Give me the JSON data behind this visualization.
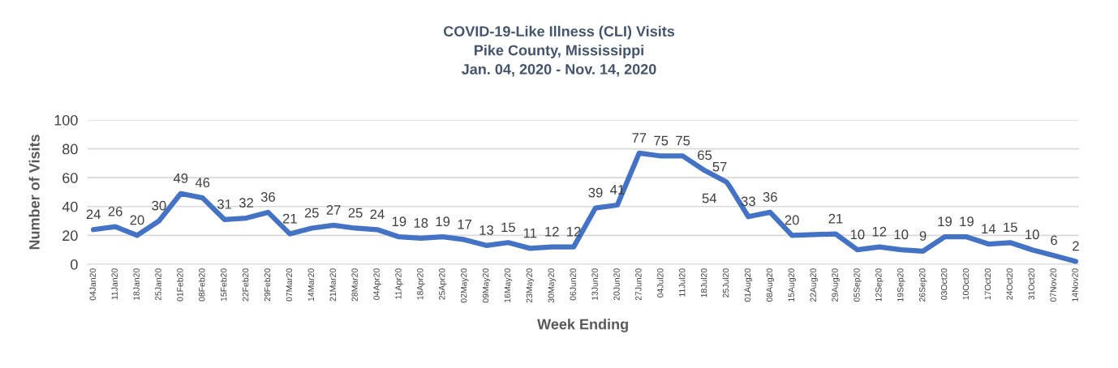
{
  "chart_data": {
    "type": "line",
    "title": "COVID-19-Like Illness (CLI) Visits\nPike County, Mississippi\nJan. 04, 2020 - Nov. 14, 2020",
    "xlabel": "Week Ending",
    "ylabel": "Number of Visits",
    "series": [
      {
        "color": "#4472c4",
        "x": [
          "2020-01-04",
          "2020-01-11",
          "2020-01-18",
          "2020-01-25",
          "2020-02-01",
          "2020-02-08",
          "2020-02-15",
          "2020-02-22",
          "2020-02-29",
          "2020-03-07",
          "2020-03-14",
          "2020-03-21",
          "2020-03-28",
          "2020-04-04",
          "2020-04-11",
          "2020-04-18",
          "2020-04-25",
          "2020-05-02",
          "2020-05-09",
          "2020-05-16",
          "2020-05-23",
          "2020-05-30",
          "2020-06-06",
          "2020-06-13",
          "2020-06-20",
          "2020-06-27",
          "2020-07-04",
          "2020-07-11",
          "2020-07-18",
          "2020-07-25",
          "2020-07-26",
          "2020-08-01",
          "2020-08-08",
          "2020-08-15",
          "2020-08-29",
          "2020-09-05",
          "2020-09-12",
          "2020-09-19",
          "2020-09-26",
          "2020-10-03",
          "2020-10-10",
          "2020-10-17",
          "2020-10-24",
          "2020-10-31",
          "2020-11-07",
          "2020-11-14"
        ],
        "values": [
          24,
          26,
          20,
          30,
          49,
          46,
          31,
          32,
          36,
          21,
          25,
          27,
          25,
          24,
          19,
          18,
          19,
          17,
          13,
          15,
          11,
          12,
          12,
          39,
          41,
          77,
          75,
          75,
          65,
          57,
          54,
          33,
          36,
          20,
          21,
          10,
          12,
          10,
          9,
          19,
          19,
          14,
          15,
          10,
          6,
          2
        ]
      }
    ],
    "xlim": [
      "2020-01-02",
      "2020-11-15"
    ],
    "xticks": [
      {
        "value": "2020-01-04",
        "label": "04Jan20"
      },
      {
        "value": "2020-01-11",
        "label": "11Jan20"
      },
      {
        "value": "2020-01-18",
        "label": "18Jan20"
      },
      {
        "value": "2020-01-25",
        "label": "25Jan20"
      },
      {
        "value": "2020-02-01",
        "label": "01Feb20"
      },
      {
        "value": "2020-02-08",
        "label": "08Feb20"
      },
      {
        "value": "2020-02-15",
        "label": "15Feb20"
      },
      {
        "value": "2020-02-22",
        "label": "22Feb20"
      },
      {
        "value": "2020-02-29",
        "label": "29Feb20"
      },
      {
        "value": "2020-03-07",
        "label": "07Mar20"
      },
      {
        "value": "2020-03-14",
        "label": "14Mar20"
      },
      {
        "value": "2020-03-21",
        "label": "21Mar20"
      },
      {
        "value": "2020-03-28",
        "label": "28Mar20"
      },
      {
        "value": "2020-04-04",
        "label": "04Apr20"
      },
      {
        "value": "2020-04-11",
        "label": "11Apr20"
      },
      {
        "value": "2020-04-18",
        "label": "18Apr20"
      },
      {
        "value": "2020-04-25",
        "label": "25Apr20"
      },
      {
        "value": "2020-05-02",
        "label": "02May20"
      },
      {
        "value": "2020-05-09",
        "label": "09May20"
      },
      {
        "value": "2020-05-16",
        "label": "16May20"
      },
      {
        "value": "2020-05-23",
        "label": "23May20"
      },
      {
        "value": "2020-05-30",
        "label": "30May20"
      },
      {
        "value": "2020-06-06",
        "label": "06Jun20"
      },
      {
        "value": "2020-06-13",
        "label": "13Jun20"
      },
      {
        "value": "2020-06-20",
        "label": "20Jun20"
      },
      {
        "value": "2020-06-27",
        "label": "27Jun20"
      },
      {
        "value": "2020-07-04",
        "label": "04Jul20"
      },
      {
        "value": "2020-07-11",
        "label": "11Jul20"
      },
      {
        "value": "2020-07-18",
        "label": "18Jul20"
      },
      {
        "value": "2020-07-25",
        "label": "25Jul20"
      },
      {
        "value": "2020-08-01",
        "label": "01Aug20"
      },
      {
        "value": "2020-08-08",
        "label": "08Aug20"
      },
      {
        "value": "2020-08-15",
        "label": "15Aug20"
      },
      {
        "value": "2020-08-22",
        "label": "22Aug20"
      },
      {
        "value": "2020-08-29",
        "label": "29Aug20"
      },
      {
        "value": "2020-09-05",
        "label": "05Sep20"
      },
      {
        "value": "2020-09-12",
        "label": "12Sep20"
      },
      {
        "value": "2020-09-19",
        "label": "19Sep20"
      },
      {
        "value": "2020-09-26",
        "label": "26Sep20"
      },
      {
        "value": "2020-10-03",
        "label": "03Oct20"
      },
      {
        "value": "2020-10-10",
        "label": "10Oct20"
      },
      {
        "value": "2020-10-17",
        "label": "17Oct20"
      },
      {
        "value": "2020-10-24",
        "label": "24Oct20"
      },
      {
        "value": "2020-10-31",
        "label": "31Oct20"
      },
      {
        "value": "2020-11-07",
        "label": "07Nov20"
      },
      {
        "value": "2020-11-14",
        "label": "14Nov20"
      }
    ],
    "ylim": [
      0,
      100
    ],
    "yticks": [
      0,
      20,
      40,
      60,
      80,
      100
    ],
    "grid": "y",
    "data_labels": true,
    "marker": "none",
    "line_style": "solid",
    "legend": false
  }
}
